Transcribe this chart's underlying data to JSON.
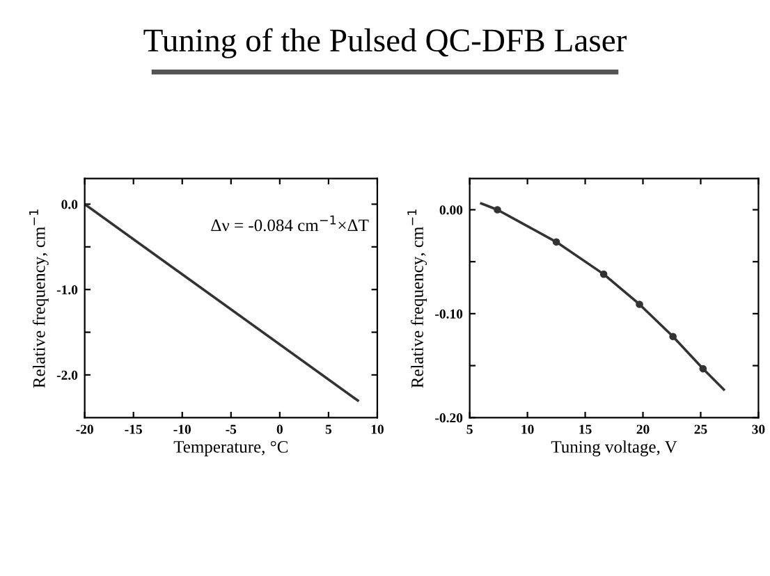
{
  "chart_data": [
    {
      "type": "line",
      "title": "Tuning of the Pulsed QC-DFB Laser",
      "xlabel": "Temperature, °C",
      "ylabel": "Relative frequency, cm$^{−1}$",
      "x": [
        -20,
        8
      ],
      "series": [
        {
          "color": "#333333",
          "values": [
            0.0,
            -2.3
          ]
        }
      ],
      "xlim": [
        -20,
        10
      ],
      "xticks": [
        -20,
        -15,
        -10,
        -5,
        0,
        5,
        10
      ],
      "ylim": [
        -2.5,
        0.3
      ],
      "yticks": [
        {
          "value": 0,
          "label": "0.0"
        },
        {
          "value": -0.5,
          "label": null
        },
        {
          "value": -1,
          "label": "-1.0"
        },
        {
          "value": -1.5,
          "label": null
        },
        {
          "value": -2,
          "label": "-2.0"
        }
      ],
      "annotations": [
        "Δν = -0.084 cm$^{−1}$×ΔT"
      ],
      "grid": false,
      "legend": false
    },
    {
      "type": "line",
      "xlabel": "Tuning voltage, V",
      "ylabel": "Relative frequency, cm$^{−1}$",
      "series": [
        {
          "type": "line",
          "color": "#333333",
          "x": [
            6,
            7.4,
            12.5,
            16.6,
            19.7,
            22.6,
            25.2,
            27
          ],
          "values": [
            0.006,
            0.0,
            -0.031,
            -0.062,
            -0.091,
            -0.122,
            -0.153,
            -0.173
          ]
        },
        {
          "type": "scatter",
          "color": "#333333",
          "x": [
            7.4,
            12.5,
            16.6,
            19.7,
            22.6,
            25.2
          ],
          "values": [
            0.0,
            -0.031,
            -0.062,
            -0.091,
            -0.122,
            -0.153
          ]
        }
      ],
      "xlim": [
        5,
        30
      ],
      "xticks": [
        5,
        10,
        15,
        20,
        25,
        30
      ],
      "ylim": [
        -0.2,
        0.03
      ],
      "yticks": [
        {
          "value": 0.0,
          "label": "0.00"
        },
        {
          "value": -0.05,
          "label": null
        },
        {
          "value": -0.1,
          "label": "-0.10"
        },
        {
          "value": -0.15,
          "label": null
        },
        {
          "value": -0.2,
          "label": "-0.20"
        }
      ],
      "grid": false,
      "legend": false
    }
  ]
}
